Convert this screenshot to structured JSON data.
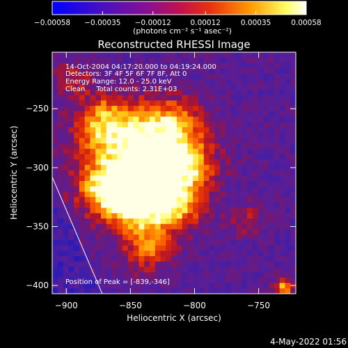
{
  "chart_data": {
    "type": "heatmap",
    "title": "Reconstructed RHESSI Image",
    "xlabel": "Heliocentric X (arcsec)",
    "ylabel": "Heliocentric Y (arcsec)",
    "xlim": [
      -911,
      -721
    ],
    "ylim": [
      -407,
      -202
    ],
    "x_ticks": [
      "−900",
      "−850",
      "−800",
      "−750"
    ],
    "x_tick_values": [
      -900,
      -850,
      -800,
      -750
    ],
    "y_ticks": [
      "−250",
      "−300",
      "−350",
      "−400"
    ],
    "y_tick_values": [
      -250,
      -300,
      -350,
      -400
    ],
    "colorbar": {
      "ticks": [
        "−0.00058",
        "−0.00035",
        "−0.00012",
        "0.00012",
        "0.00035",
        "0.00058"
      ],
      "tick_values": [
        -0.00058,
        -0.00035,
        -0.00012,
        0.00012,
        0.00035,
        0.00058
      ],
      "range": [
        -0.00058,
        0.00058
      ],
      "units_label": "(photons cm⁻² s⁻¹ asec⁻²)",
      "colors": [
        "#0000ff",
        "#6a00b0",
        "#a0107a",
        "#e02020",
        "#ff8a00",
        "#ffff70",
        "#ffffff"
      ]
    },
    "annotations": {
      "time_range": "14-Oct-2004 04:17:20.000 to 04:19:24.000",
      "detectors": "Detectors: 3F 4F 5F 6F 7F 8F, Att 0",
      "energy": "Energy Range: 12.0 - 25.0 keV",
      "clean": "Clean     Total counts: 2.31E+03",
      "peak": "Position of Peak = [-839,-346]"
    },
    "peak_position": [
      -839,
      -346
    ],
    "limb_line": [
      [
        -911,
        -308
      ],
      [
        -872,
        -407
      ]
    ],
    "grid": false
  },
  "footer": {
    "date": "4-May-2022 01:56"
  }
}
